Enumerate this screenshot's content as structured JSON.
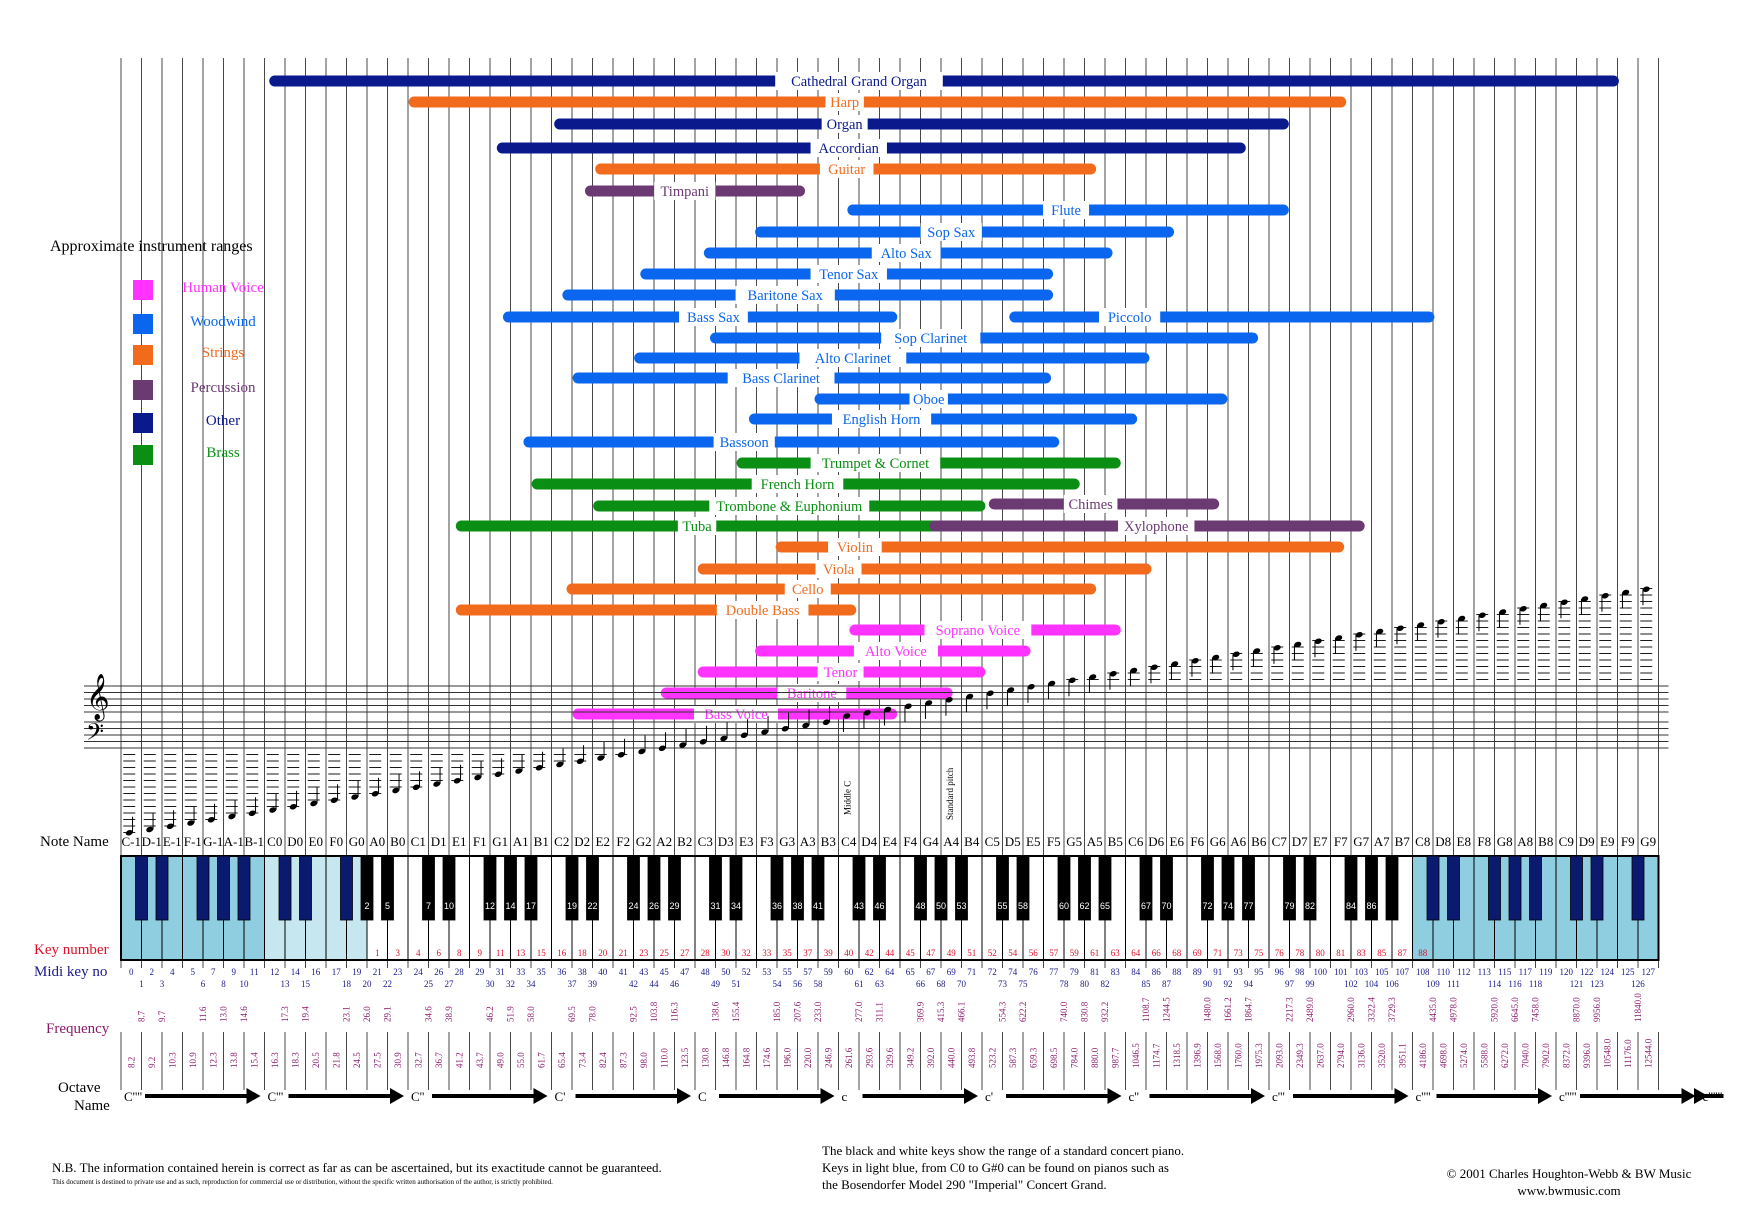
{
  "legend": {
    "title": "Approximate instrument ranges",
    "items": [
      {
        "label": "Human Voice",
        "color": "#ff33ff"
      },
      {
        "label": "Woodwind",
        "color": "#0a66ee"
      },
      {
        "label": "Strings",
        "color": "#f26b1d"
      },
      {
        "label": "Percussion",
        "color": "#6b3a73"
      },
      {
        "label": "Other",
        "color": "#0a1a8c"
      },
      {
        "label": "Brass",
        "color": "#0a8f14"
      }
    ]
  },
  "chart_data": {
    "type": "range-chart",
    "title": "Approximate instrument ranges",
    "note_names": [
      "C-1",
      "D-1",
      "E-1",
      "F-1",
      "G-1",
      "A-1",
      "B-1",
      "C0",
      "D0",
      "E0",
      "F0",
      "G0",
      "A0",
      "B0",
      "C1",
      "D1",
      "E1",
      "F1",
      "G1",
      "A1",
      "B1",
      "C2",
      "D2",
      "E2",
      "F2",
      "G2",
      "A2",
      "B2",
      "C3",
      "D3",
      "E3",
      "F3",
      "G3",
      "A3",
      "B3",
      "C4",
      "D4",
      "E4",
      "F4",
      "G4",
      "A4",
      "B4",
      "C5",
      "D5",
      "E5",
      "F5",
      "G5",
      "A5",
      "B5",
      "C6",
      "D6",
      "E6",
      "F6",
      "G6",
      "A6",
      "B6",
      "C7",
      "D7",
      "E7",
      "F7",
      "G7",
      "A7",
      "B7",
      "C8",
      "D8",
      "E8",
      "F8",
      "G8",
      "A8",
      "B8",
      "C9",
      "D9",
      "E9",
      "F9",
      "G9"
    ],
    "instruments": [
      {
        "name": "Cathedral Grand Organ",
        "category": "Other",
        "start": 7.5,
        "end": 72.8,
        "label_pos": 36
      },
      {
        "name": "Harp",
        "category": "Strings",
        "start": 14.3,
        "end": 59.5,
        "label_pos": 35.3
      },
      {
        "name": "Organ",
        "category": "Other",
        "start": 21.4,
        "end": 56.7,
        "label_pos": 35.3
      },
      {
        "name": "Accordian",
        "category": "Other",
        "start": 18.6,
        "end": 54.6,
        "label_pos": 35.5
      },
      {
        "name": "Guitar",
        "category": "Strings",
        "start": 23.4,
        "end": 47.3,
        "label_pos": 35.4
      },
      {
        "name": "Timpani",
        "category": "Percussion",
        "start": 22.9,
        "end": 33.1,
        "label_pos": 27.5
      },
      {
        "name": "Flute",
        "category": "Woodwind",
        "start": 35.7,
        "end": 56.7,
        "label_pos": 46.1
      },
      {
        "name": "Sop Sax",
        "category": "Woodwind",
        "start": 31.2,
        "end": 51.1,
        "label_pos": 40.5
      },
      {
        "name": "Alto Sax",
        "category": "Woodwind",
        "start": 28.7,
        "end": 48.1,
        "label_pos": 38.3
      },
      {
        "name": "Tenor Sax",
        "category": "Woodwind",
        "start": 25.6,
        "end": 45.2,
        "label_pos": 35.5
      },
      {
        "name": "Baritone Sax",
        "category": "Woodwind",
        "start": 21.8,
        "end": 45.2,
        "label_pos": 32.4
      },
      {
        "name": "Bass Sax",
        "category": "Woodwind",
        "start": 18.9,
        "end": 37.6,
        "label_pos": 28.9
      },
      {
        "name": "Piccolo",
        "category": "Woodwind",
        "start": 43.6,
        "end": 63.8,
        "label_pos": 49.2
      },
      {
        "name": "Sop Clarinet",
        "category": "Woodwind",
        "start": 29.0,
        "end": 55.2,
        "label_pos": 39.5
      },
      {
        "name": "Alto Clarinet",
        "category": "Woodwind",
        "start": 25.3,
        "end": 49.9,
        "label_pos": 35.7
      },
      {
        "name": "Bass Clarinet",
        "category": "Woodwind",
        "start": 22.3,
        "end": 45.1,
        "label_pos": 32.2
      },
      {
        "name": "Oboe",
        "category": "Woodwind",
        "start": 34.1,
        "end": 53.7,
        "label_pos": 39.4
      },
      {
        "name": "English Horn",
        "category": "Woodwind",
        "start": 30.9,
        "end": 49.3,
        "label_pos": 37.1
      },
      {
        "name": "Bassoon",
        "category": "Woodwind",
        "start": 19.9,
        "end": 45.5,
        "label_pos": 30.4
      },
      {
        "name": "Trumpet & Cornet",
        "category": "Brass",
        "start": 30.3,
        "end": 48.5,
        "label_pos": 36.8
      },
      {
        "name": "French Horn",
        "category": "Brass",
        "start": 20.3,
        "end": 46.5,
        "label_pos": 33.0
      },
      {
        "name": "Trombone & Euphonium",
        "category": "Brass",
        "start": 23.3,
        "end": 41.9,
        "label_pos": 32.6
      },
      {
        "name": "Chimes",
        "category": "Percussion",
        "start": 42.6,
        "end": 53.3,
        "label_pos": 47.3
      },
      {
        "name": "Tuba",
        "category": "Brass",
        "start": 16.6,
        "end": 39.6,
        "label_pos": 28.1
      },
      {
        "name": "Xylophone",
        "category": "Percussion",
        "start": 39.7,
        "end": 60.4,
        "label_pos": 50.5
      },
      {
        "name": "Violin",
        "category": "Strings",
        "start": 32.2,
        "end": 59.4,
        "label_pos": 35.8
      },
      {
        "name": "Viola",
        "category": "Strings",
        "start": 28.4,
        "end": 50.0,
        "label_pos": 35.0
      },
      {
        "name": "Cello",
        "category": "Strings",
        "start": 22.0,
        "end": 47.3,
        "label_pos": 33.5
      },
      {
        "name": "Double Bass",
        "category": "Strings",
        "start": 16.6,
        "end": 35.6,
        "label_pos": 31.3
      },
      {
        "name": "Soprano Voice",
        "category": "Human Voice",
        "start": 35.8,
        "end": 48.5,
        "label_pos": 41.8
      },
      {
        "name": "Alto Voice",
        "category": "Human Voice",
        "start": 31.2,
        "end": 44.1,
        "label_pos": 37.8
      },
      {
        "name": "Tenor",
        "category": "Human Voice",
        "start": 28.4,
        "end": 41.9,
        "label_pos": 35.1
      },
      {
        "name": "Baritone",
        "category": "Human Voice",
        "start": 26.6,
        "end": 40.3,
        "label_pos": 33.7
      },
      {
        "name": "Bass Voice",
        "category": "Human Voice",
        "start": 22.3,
        "end": 37.6,
        "label_pos": 30.0
      }
    ],
    "row_labels": {
      "note_name": "Note Name",
      "key_number": "Key number",
      "midi_key_no": "Midi key no",
      "frequency": "Frequency",
      "octave_name_1": "Octave",
      "octave_name_2": "Name"
    },
    "key_numbers_white": [
      "1",
      "3",
      "4",
      "6",
      "8",
      "9",
      "11",
      "13",
      "15",
      "16",
      "18",
      "20",
      "21",
      "23",
      "25",
      "27",
      "28",
      "30",
      "32",
      "33",
      "35",
      "37",
      "39",
      "40",
      "42",
      "44",
      "45",
      "47",
      "49",
      "51",
      "52",
      "54",
      "56",
      "57",
      "59",
      "61",
      "63",
      "64",
      "66",
      "68",
      "69",
      "71",
      "73",
      "75",
      "76",
      "78",
      "80",
      "81",
      "83",
      "85",
      "87",
      "88"
    ],
    "key_numbers_black": [
      "2",
      "5",
      "7",
      "10",
      "12",
      "14",
      "17",
      "19",
      "22",
      "24",
      "26",
      "29",
      "31",
      "34",
      "36",
      "38",
      "41",
      "43",
      "46",
      "48",
      "50",
      "53",
      "55",
      "58",
      "60",
      "62",
      "65",
      "67",
      "70",
      "72",
      "74",
      "77",
      "79",
      "82",
      "84",
      "86"
    ],
    "midi_white": [
      "0",
      "2",
      "4",
      "5",
      "7",
      "9",
      "11",
      "12",
      "14",
      "16",
      "17",
      "19",
      "21",
      "23",
      "24",
      "26",
      "28",
      "29",
      "31",
      "33",
      "35",
      "36",
      "38",
      "40",
      "41",
      "43",
      "45",
      "47",
      "48",
      "50",
      "52",
      "53",
      "55",
      "57",
      "59",
      "60",
      "62",
      "64",
      "65",
      "67",
      "69",
      "71",
      "72",
      "74",
      "76",
      "77",
      "79",
      "81",
      "83",
      "84",
      "86",
      "88",
      "89",
      "91",
      "93",
      "95",
      "96",
      "98",
      "100",
      "101",
      "103",
      "105",
      "107",
      "108",
      "110",
      "112",
      "113",
      "115",
      "117",
      "119",
      "120",
      "122",
      "124",
      "125",
      "127"
    ],
    "midi_black": [
      "1",
      "3",
      "6",
      "8",
      "10",
      "13",
      "15",
      "18",
      "20",
      "22",
      "25",
      "27",
      "30",
      "32",
      "34",
      "37",
      "39",
      "42",
      "44",
      "46",
      "49",
      "51",
      "54",
      "56",
      "58",
      "61",
      "63",
      "66",
      "68",
      "70",
      "73",
      "75",
      "78",
      "80",
      "82",
      "85",
      "87",
      "90",
      "92",
      "94",
      "97",
      "99",
      "102",
      "104",
      "106",
      "109",
      "111",
      "114",
      "116",
      "118",
      "121",
      "123",
      "126"
    ],
    "freq_white": [
      "8.2",
      "9.2",
      "10.3",
      "10.9",
      "12.3",
      "13.8",
      "15.4",
      "16.3",
      "18.3",
      "20.5",
      "21.8",
      "24.5",
      "27.5",
      "30.9",
      "32.7",
      "36.7",
      "41.2",
      "43.7",
      "49.0",
      "55.0",
      "61.7",
      "65.4",
      "73.4",
      "82.4",
      "87.3",
      "98.0",
      "110.0",
      "123.5",
      "130.8",
      "146.8",
      "164.8",
      "174.6",
      "196.0",
      "220.0",
      "246.9",
      "261.6",
      "293.6",
      "329.6",
      "349.2",
      "392.0",
      "440.0",
      "493.8",
      "523.2",
      "587.3",
      "659.3",
      "698.5",
      "784.0",
      "880.0",
      "987.7",
      "1046.5",
      "1174.7",
      "1318.5",
      "1396.9",
      "1568.0",
      "1760.0",
      "1975.3",
      "2093.0",
      "2349.3",
      "2637.0",
      "2794.0",
      "3136.0",
      "3520.0",
      "3951.1",
      "4186.0",
      "4698.0",
      "5274.0",
      "5588.0",
      "6272.0",
      "7040.0",
      "7902.0",
      "8372.0",
      "9396.0",
      "10548.0",
      "11176.0",
      "12544.0"
    ],
    "freq_black": [
      "8.7",
      "9.7",
      "11.6",
      "13.0",
      "14.6",
      "17.3",
      "19.4",
      "23.1",
      "26.0",
      "29.1",
      "34.6",
      "38.9",
      "46.2",
      "51.9",
      "58.0",
      "69.5",
      "78.0",
      "92.5",
      "103.8",
      "116.3",
      "138.6",
      "155.4",
      "185.0",
      "207.6",
      "233.0",
      "277.0",
      "311.1",
      "369.9",
      "415.3",
      "466.1",
      "554.3",
      "622.2",
      "740.0",
      "830.8",
      "932.2",
      "1108.7",
      "1244.5",
      "1480.0",
      "1661.2",
      "1864.7",
      "2217.3",
      "2489.0",
      "2960.0",
      "3322.4",
      "3729.3",
      "4435.0",
      "4978.0",
      "5920.0",
      "6645.0",
      "7458.0",
      "8870.0",
      "9956.0",
      "11840.0"
    ],
    "octave_names": [
      "C''''",
      "C'''",
      "C''",
      "C'",
      "C",
      "c",
      "c'",
      "c''",
      "c'''",
      "c''''",
      "c'''''",
      "c''''''"
    ],
    "annotations": {
      "middle_c": "Middle C",
      "standard_pitch": "Standard pitch"
    }
  },
  "footer": {
    "nb": "N.B. The information contained herein is correct as far as can be ascertained, but its exactitude cannot be guaranteed.",
    "private": "This document is destined to private use and as such, reproduction for commercial use or distribution, without the specific written authorisation of the author, is strictly prohibited.",
    "keys_1": "The black and white keys show the range of a standard concert piano.",
    "keys_2": "Keys in light blue, from C0 to G#0 can be found on pianos such as",
    "keys_3": "the Bosendorfer Model 290 \"Imperial\" Concert Grand.",
    "copyright": "© 2001 Charles Houghton-Webb & BW Music",
    "website": "www.bwmusic.com"
  },
  "colors": {
    "Human Voice": "#ff33ff",
    "Woodwind": "#0a66ee",
    "Strings": "#f26b1d",
    "Percussion": "#6b3a73",
    "Other": "#0a1a8c",
    "Brass": "#0a8f14",
    "key_red": "#e0102a",
    "midi_blue": "#1a1a8a",
    "freq_purple": "#8b1a6b",
    "light_blue": "#8fcde0",
    "pale_blue": "#c6e7f0"
  }
}
